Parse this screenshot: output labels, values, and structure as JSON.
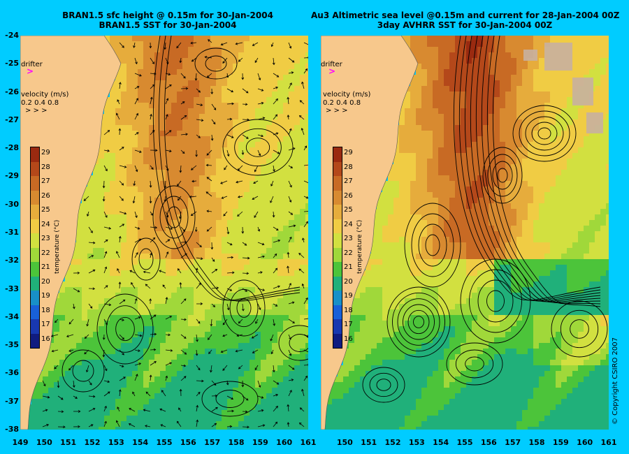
{
  "left": {
    "title_line1": "BRAN1.5 sfc height @ 0.15m for 30-Jan-2004",
    "title_line2": "BRAN1.5 SST for 30-Jan-2004"
  },
  "right": {
    "title_line1": "Au3 Altimetric sea level  @0.15m and current for 28-Jan-2004 00Z",
    "title_line2": "3day AVHRR SST for 30-Jan-2004 00Z"
  },
  "y_ticks": [
    "-24",
    "-25",
    "-26",
    "-27",
    "-28",
    "-29",
    "-30",
    "-31",
    "-32",
    "-33",
    "-34",
    "-35",
    "-36",
    "-37",
    "-38"
  ],
  "x_ticks_left": [
    "149",
    "150",
    "151",
    "152",
    "153",
    "154",
    "155",
    "156",
    "157",
    "158",
    "159",
    "160",
    "161"
  ],
  "x_ticks_right": [
    "150",
    "151",
    "152",
    "153",
    "154",
    "155",
    "156",
    "157",
    "158",
    "159",
    "160",
    "161"
  ],
  "overlay": {
    "drifter_label": "drifter",
    "drifter_marker": ">",
    "velocity_title": "velocity (m/s)",
    "velocity_scale": "0.2 0.4 0.8",
    "velocity_arrows": ">  >  >"
  },
  "colorbar": {
    "label": "temperature (°C)",
    "ticks": [
      "29",
      "28",
      "27",
      "26",
      "25",
      "24",
      "23",
      "22",
      "21",
      "20",
      "19",
      "18",
      "17",
      "16"
    ],
    "colors": [
      "#9a2a10",
      "#b4481a",
      "#c86a24",
      "#d88a30",
      "#e6ac3c",
      "#f0cc44",
      "#d2e040",
      "#a0d83a",
      "#4cc43a",
      "#20b07a",
      "#1890c8",
      "#1860d8",
      "#1838b0",
      "#101c80"
    ]
  },
  "copyright": "© Copyright CSIRO 2007",
  "map_colors": {
    "land": "#f7c88c",
    "background": "#00ccff",
    "drifter": "#ff00ff",
    "cloud": "#c8b0a0"
  }
}
